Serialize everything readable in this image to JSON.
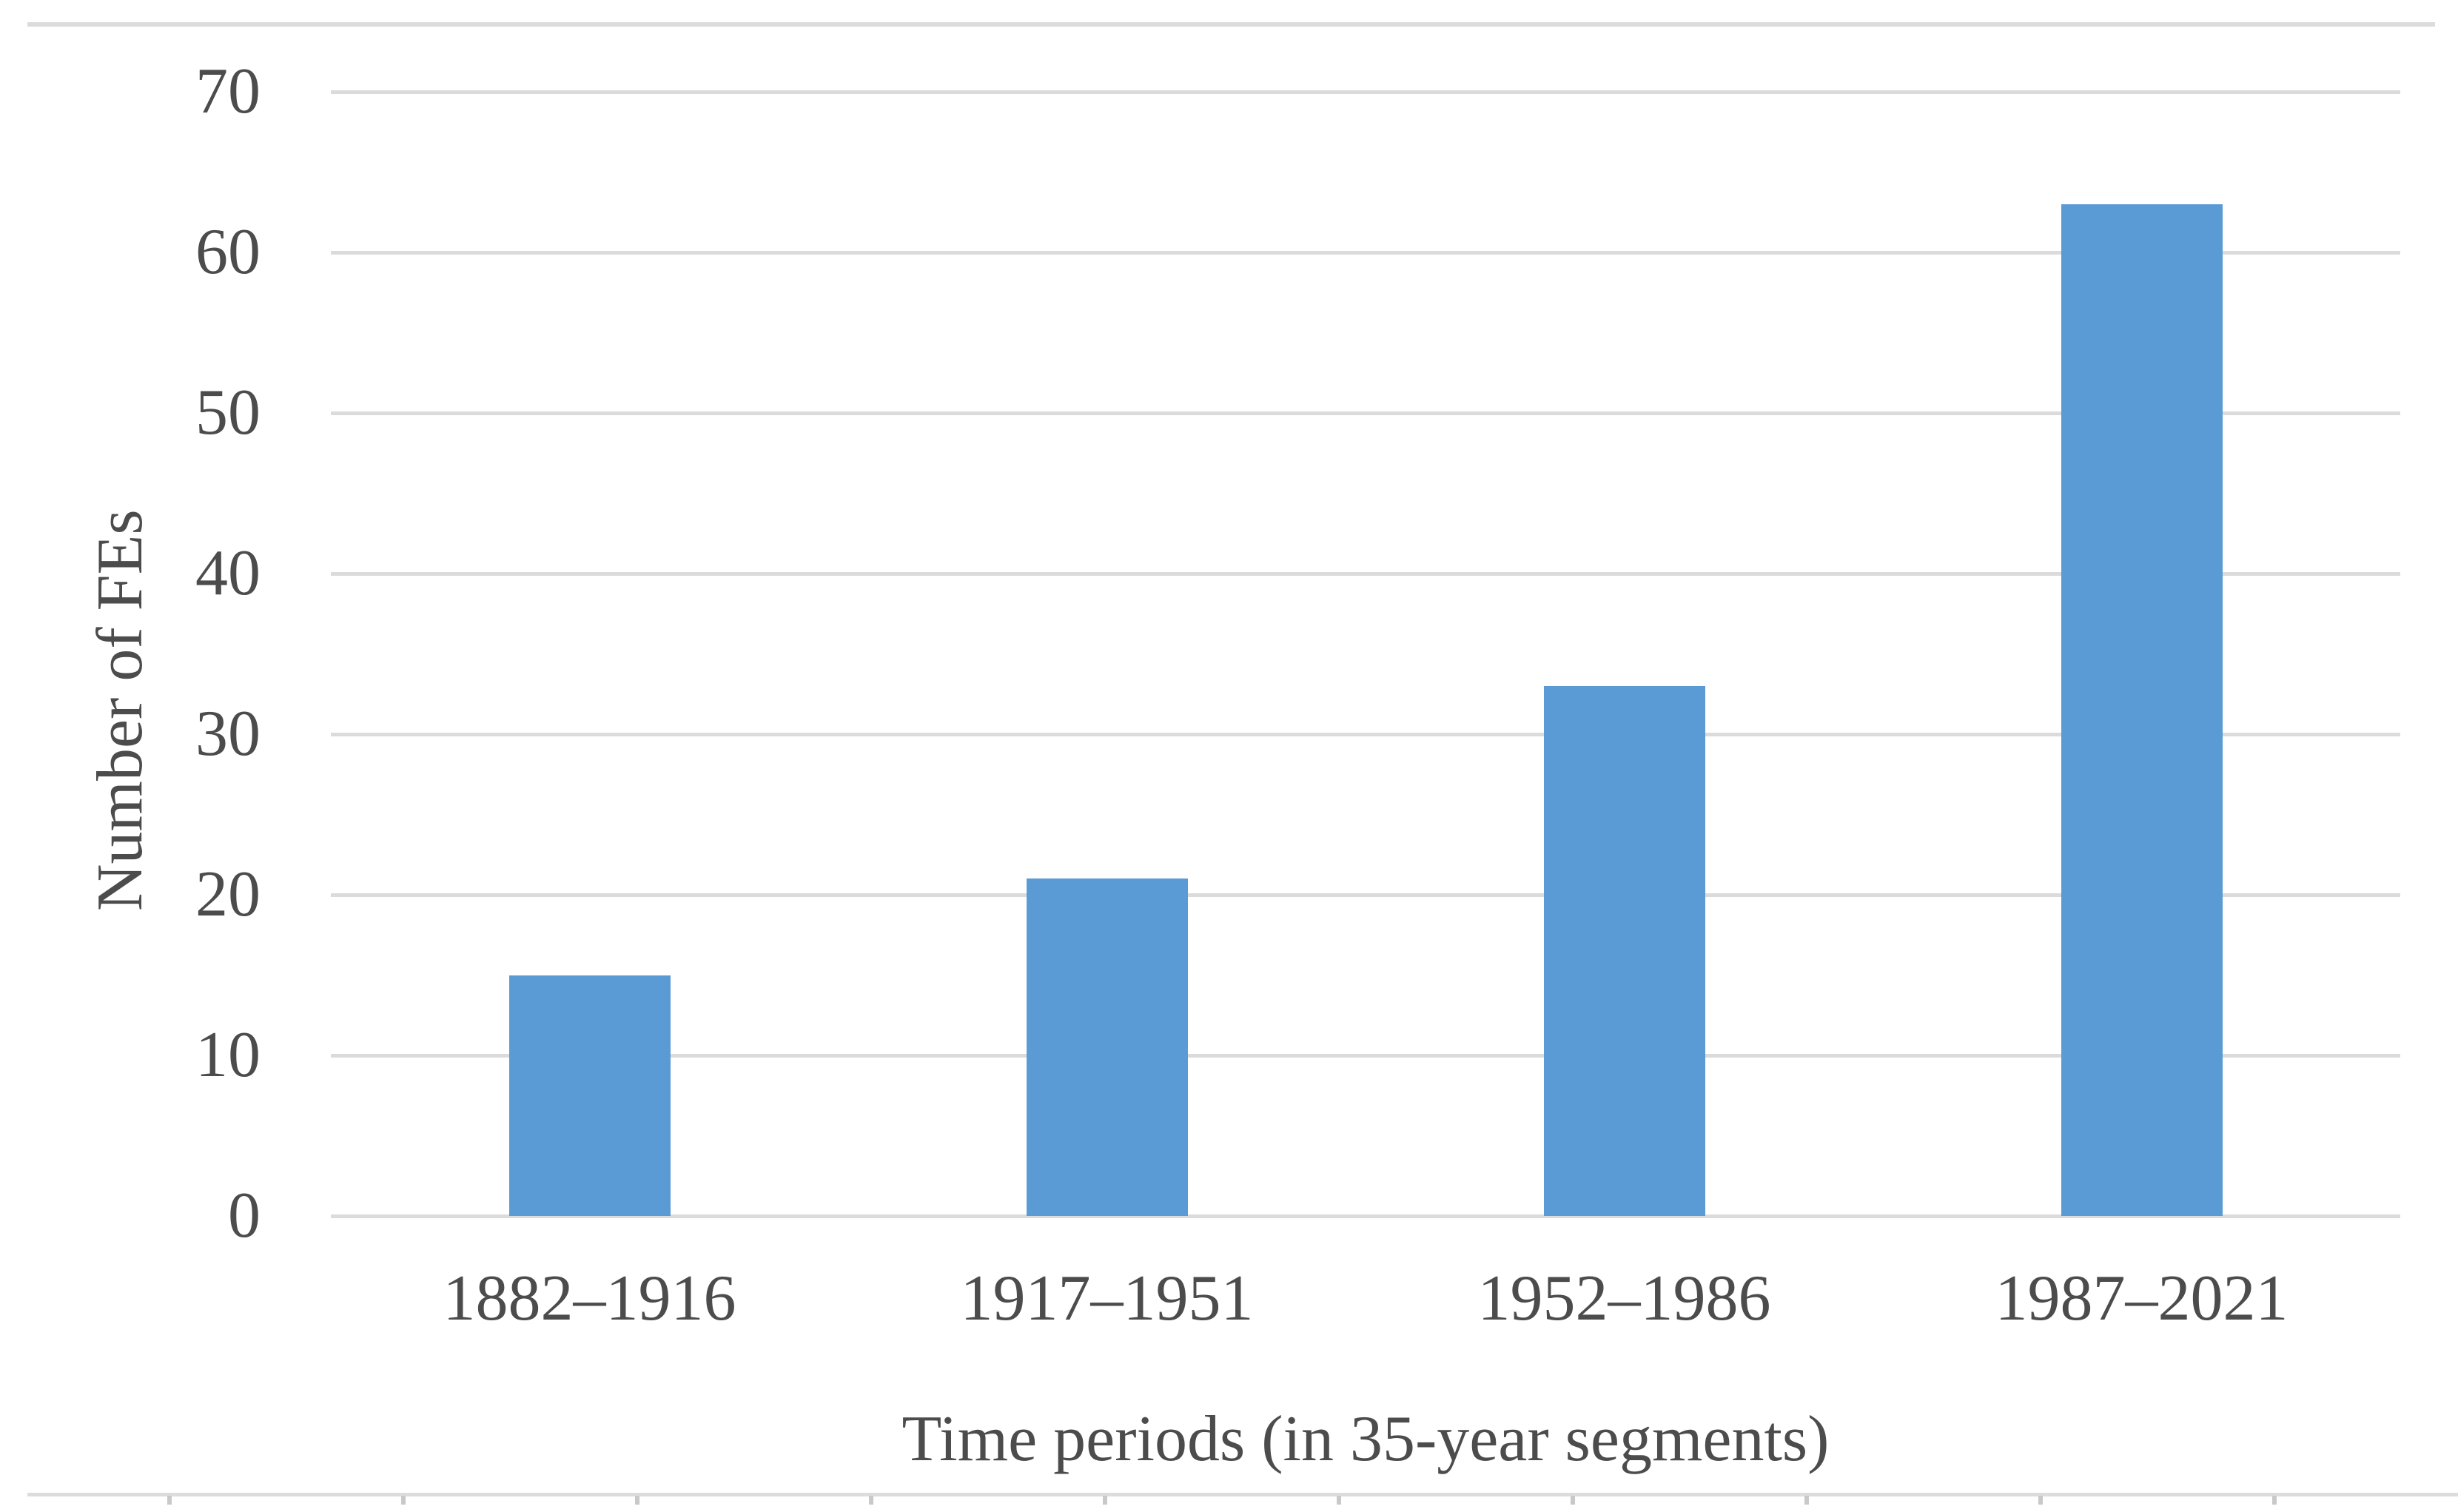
{
  "chart_data": {
    "type": "bar",
    "title": "",
    "categories": [
      "1882–1916",
      "1917–1951",
      "1952–1986",
      "1987–2021"
    ],
    "values": [
      15,
      21,
      33,
      63
    ],
    "xlabel": "Time periods (in 35-year segments)",
    "ylabel": "Number of FEs",
    "ylim": [
      0,
      70
    ],
    "yticks": [
      0,
      10,
      20,
      30,
      40,
      50,
      60,
      70
    ],
    "grid": true,
    "legend": false,
    "bar_color": "#5b9bd5",
    "gridline_color": "#dbdbdb",
    "axis_text_color": "#4c4c4c",
    "page_border_color": "#dcdcdc"
  }
}
